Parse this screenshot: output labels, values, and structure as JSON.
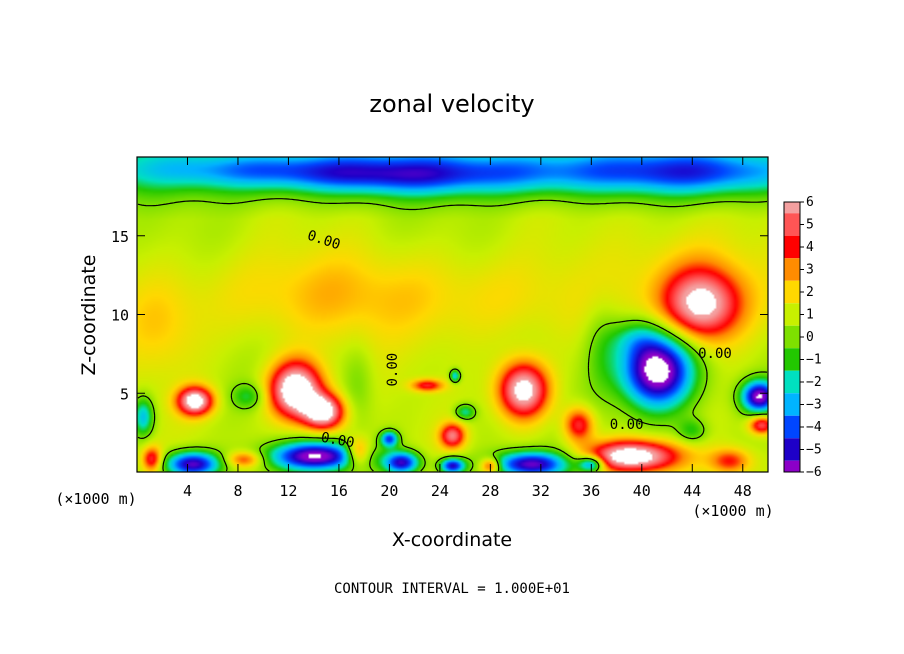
{
  "chart_data": {
    "type": "heatmap",
    "title": "zonal velocity",
    "xlabel": "X-coordinate",
    "ylabel": "Z-coordinate",
    "x_unit_left": "(×1000 m)",
    "x_unit_right": "(×1000 m)",
    "xlim": [
      0,
      50
    ],
    "ylim": [
      0,
      20
    ],
    "x_ticks": [
      4,
      8,
      12,
      16,
      20,
      24,
      28,
      32,
      36,
      40,
      44,
      48
    ],
    "y_ticks": [
      5,
      10,
      15
    ],
    "colorbar": {
      "levels": [
        6,
        5,
        4,
        3,
        2,
        1,
        0,
        -1,
        -2,
        -3,
        -4,
        -5,
        -6
      ],
      "colors": [
        "#f4a0a0",
        "#ff5555",
        "#ff0000",
        "#ff8c00",
        "#ffd800",
        "#c8f000",
        "#7ee000",
        "#22c800",
        "#00e0c0",
        "#00b4ff",
        "#0046ff",
        "#1e00c8",
        "#8c00c8"
      ],
      "label_texts": [
        "6",
        "5",
        "4",
        "3",
        "2",
        "1",
        "0",
        "−1",
        "−2",
        "−3",
        "−4",
        "−5",
        "−6"
      ]
    },
    "contour_labels": [
      {
        "text": "0.00",
        "x": 14.8,
        "z": 14.7,
        "angle": 18
      },
      {
        "text": "0.00",
        "x": 20.3,
        "z": 6.5,
        "angle": -90
      },
      {
        "text": "0.00",
        "x": 15.9,
        "z": 2.0,
        "angle": 10
      },
      {
        "text": "0.00",
        "x": 38.8,
        "z": 3.0,
        "angle": 0
      },
      {
        "text": "0.00",
        "x": 45.8,
        "z": 7.5,
        "angle": 0
      }
    ],
    "features": [
      {
        "kind": "min",
        "x": 28,
        "z": 18.8,
        "value": -4
      },
      {
        "kind": "max",
        "x": 44.8,
        "z": 10.6,
        "value": 5
      },
      {
        "kind": "max",
        "x": 12.6,
        "z": 5.2,
        "value": 7
      },
      {
        "kind": "max",
        "x": 14.8,
        "z": 3.8,
        "value": 6
      },
      {
        "kind": "max",
        "x": 4.6,
        "z": 4.5,
        "value": 6
      },
      {
        "kind": "max",
        "x": 30.6,
        "z": 5.2,
        "value": 6
      },
      {
        "kind": "max",
        "x": 25.0,
        "z": 2.3,
        "value": 4
      },
      {
        "kind": "min",
        "x": 41.2,
        "z": 6.5,
        "value": -8
      },
      {
        "kind": "min",
        "x": 49.0,
        "z": 4.8,
        "value": -6
      },
      {
        "kind": "min",
        "x": 14.2,
        "z": 1.0,
        "value": -7
      },
      {
        "kind": "min",
        "x": 4.4,
        "z": 0.5,
        "value": -6
      },
      {
        "kind": "min",
        "x": 31.2,
        "z": 0.5,
        "value": -6
      },
      {
        "kind": "max",
        "x": 39.2,
        "z": 1.0,
        "value": 7
      }
    ]
  },
  "footer": {
    "contour_interval": "CONTOUR INTERVAL = 1.000E+01"
  }
}
